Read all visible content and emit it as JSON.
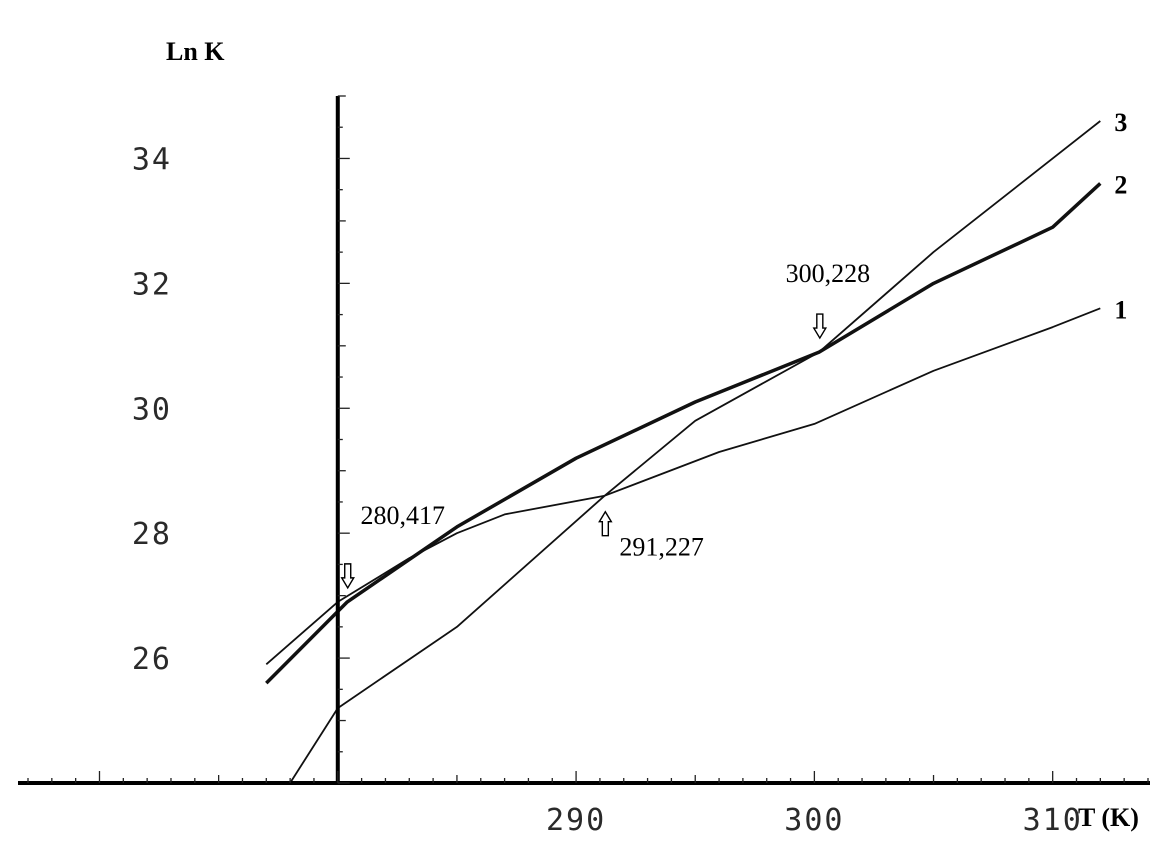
{
  "chart_data": {
    "type": "line",
    "xlabel": "T (K)",
    "ylabel": "Ln K",
    "xlim": [
      267,
      314
    ],
    "ylim": [
      24,
      35
    ],
    "x_axis_at_y": 24,
    "y_axis_at_x": 280,
    "x_ticks": [
      290,
      300,
      310
    ],
    "y_ticks": [
      26,
      28,
      30,
      32,
      34
    ],
    "grid": false,
    "series": [
      {
        "name": "1",
        "stroke_width": 1.8,
        "points": [
          [
            277,
            25.9
          ],
          [
            280,
            26.9
          ],
          [
            283,
            27.6
          ],
          [
            285,
            28.0
          ],
          [
            287,
            28.3
          ],
          [
            291.2,
            28.6
          ],
          [
            296,
            29.3
          ],
          [
            300,
            29.75
          ],
          [
            305,
            30.6
          ],
          [
            310,
            31.3
          ],
          [
            312,
            31.6
          ]
        ]
      },
      {
        "name": "2",
        "stroke_width": 3.5,
        "points": [
          [
            277,
            25.6
          ],
          [
            280.4,
            26.9
          ],
          [
            285,
            28.1
          ],
          [
            290,
            29.2
          ],
          [
            295,
            30.1
          ],
          [
            300.2,
            30.9
          ],
          [
            305,
            32.0
          ],
          [
            310,
            32.9
          ],
          [
            312,
            33.6
          ]
        ]
      },
      {
        "name": "3",
        "stroke_width": 1.8,
        "points": [
          [
            278,
            24.0
          ],
          [
            280,
            25.2
          ],
          [
            285,
            26.5
          ],
          [
            291.2,
            28.6
          ],
          [
            295,
            29.8
          ],
          [
            300.2,
            30.9
          ],
          [
            305,
            32.5
          ],
          [
            312,
            34.6
          ]
        ]
      }
    ],
    "annotations": [
      {
        "text": "280,417",
        "x": 280.417,
        "y": 26.9,
        "arrow": "down"
      },
      {
        "text": "291,227",
        "x": 291.227,
        "y": 28.6,
        "arrow": "up"
      },
      {
        "text": "300,228",
        "x": 300.228,
        "y": 30.9,
        "arrow": "down"
      }
    ]
  }
}
